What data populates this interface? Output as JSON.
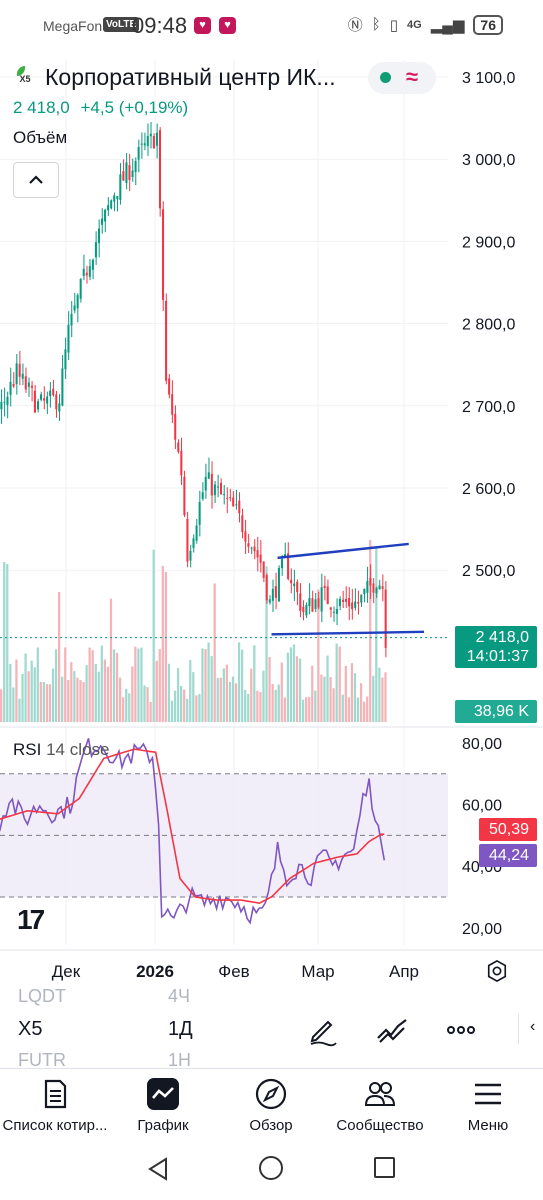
{
  "status_bar": {
    "carrier": "MegaFon",
    "volte": "VoLTE",
    "time": "09:48",
    "network": "4G",
    "battery": "76"
  },
  "header": {
    "logo_text": "X5",
    "title": "Корпоративный центр ИК...",
    "last_price": "2 418,0",
    "change": "+4,5 (+0,19%)",
    "volume_label": "Объём",
    "collapse_icon": "chevron-up-icon"
  },
  "price_tags": {
    "last_price": "2 418,0",
    "countdown": "14:01:37",
    "volume": "38,96 K",
    "rsi_ma": "50,39",
    "rsi": "44,24"
  },
  "rsi": {
    "label": "RSI",
    "params": "14 close"
  },
  "colors": {
    "up": "#089981",
    "down": "#f23645",
    "rsi": "#7e57c2",
    "rsi_ma": "#f23645",
    "trendline": "#1f3fbf",
    "accent": "#d81b60"
  },
  "chart_data": [
    {
      "type": "candlestick",
      "title": "Корпоративный центр ИК...",
      "x_tick_labels": [
        "Дек",
        "2026",
        "Фев",
        "Мар",
        "Апр"
      ],
      "y_tick_labels": [
        "3 100,0",
        "3 000,0",
        "2 900,0",
        "2 800,0",
        "2 700,0",
        "2 600,0",
        "2 500,0"
      ],
      "ylim": [
        2420,
        3110
      ],
      "grid": true,
      "last_price": 2418.0,
      "bars_per_month": 22,
      "close_path": [
        [
          0,
          2690
        ],
        [
          6,
          2740
        ],
        [
          13,
          2700
        ],
        [
          20,
          2710
        ],
        [
          23,
          2790
        ],
        [
          30,
          2880
        ],
        [
          38,
          2960
        ],
        [
          47,
          3010
        ],
        [
          52,
          3030
        ],
        [
          55,
          2730
        ],
        [
          60,
          2620
        ],
        [
          62,
          2520
        ],
        [
          68,
          2610
        ],
        [
          78,
          2570
        ],
        [
          86,
          2510
        ],
        [
          89,
          2460
        ],
        [
          94,
          2510
        ],
        [
          100,
          2450
        ],
        [
          106,
          2470
        ],
        [
          110,
          2460
        ],
        [
          118,
          2460
        ],
        [
          124,
          2490
        ],
        [
          126,
          2480
        ],
        [
          127,
          2418
        ]
      ],
      "trendlines": [
        {
          "from": [
            92,
            2515
          ],
          "to": [
            135,
            2532
          ]
        },
        {
          "from": [
            90,
            2422
          ],
          "to": [
            140,
            2425
          ]
        }
      ]
    },
    {
      "type": "bar",
      "title": "Объём",
      "description": "volume histogram beneath the candles",
      "last_value": "38,96 K"
    },
    {
      "type": "line",
      "title": "RSI 14 close",
      "y_tick_labels": [
        "80,00",
        "60,00",
        "40,00",
        "20,00"
      ],
      "ylim": [
        16,
        84
      ],
      "bands": [
        70,
        50,
        30
      ],
      "series": [
        {
          "name": "RSI",
          "path": [
            [
              0,
              52
            ],
            [
              4,
              62
            ],
            [
              9,
              55
            ],
            [
              14,
              60
            ],
            [
              19,
              57
            ],
            [
              24,
              60
            ],
            [
              29,
              78
            ],
            [
              34,
              80
            ],
            [
              40,
              74
            ],
            [
              46,
              77
            ],
            [
              51,
              76
            ],
            [
              53,
              55
            ],
            [
              54,
              26
            ],
            [
              58,
              22
            ],
            [
              63,
              30
            ],
            [
              68,
              28
            ],
            [
              73,
              30
            ],
            [
              78,
              29
            ],
            [
              83,
              25
            ],
            [
              87,
              24
            ],
            [
              89,
              30
            ],
            [
              92,
              45
            ],
            [
              95,
              37
            ],
            [
              99,
              40
            ],
            [
              103,
              37
            ],
            [
              107,
              43
            ],
            [
              110,
              40
            ],
            [
              114,
              44
            ],
            [
              117,
              45
            ],
            [
              120,
              62
            ],
            [
              122,
              66
            ],
            [
              124,
              58
            ],
            [
              125,
              52
            ],
            [
              126,
              44
            ]
          ]
        },
        {
          "name": "RSI-based MA",
          "path": [
            [
              0,
              55
            ],
            [
              10,
              58
            ],
            [
              20,
              57
            ],
            [
              27,
              62
            ],
            [
              35,
              75
            ],
            [
              45,
              78
            ],
            [
              52,
              77
            ],
            [
              56,
              57
            ],
            [
              60,
              36
            ],
            [
              65,
              30
            ],
            [
              72,
              29
            ],
            [
              80,
              29
            ],
            [
              86,
              28
            ],
            [
              90,
              30
            ],
            [
              96,
              36
            ],
            [
              104,
              41
            ],
            [
              112,
              43
            ],
            [
              118,
              44
            ],
            [
              122,
              48
            ],
            [
              126,
              50.39
            ]
          ]
        }
      ],
      "last_values": {
        "RSI": 44.24,
        "RSI-based MA": 50.39
      }
    }
  ],
  "toolbar": {
    "faded_symbol_above": "LQDT",
    "faded_interval_above": "4Ч",
    "symbol": "X5",
    "interval": "1Д",
    "faded_symbol_below": "FUTR",
    "faded_interval_below": "1H",
    "icons": [
      "pencil-icon",
      "draw-tools-icon",
      "more-icon"
    ]
  },
  "bottom_nav": {
    "items": [
      {
        "label": "Список котир...",
        "icon": "watchlist-icon"
      },
      {
        "label": "График",
        "icon": "chart-icon"
      },
      {
        "label": "Обзор",
        "icon": "compass-icon"
      },
      {
        "label": "Сообщество",
        "icon": "community-icon"
      },
      {
        "label": "Меню",
        "icon": "menu-icon"
      }
    ]
  }
}
